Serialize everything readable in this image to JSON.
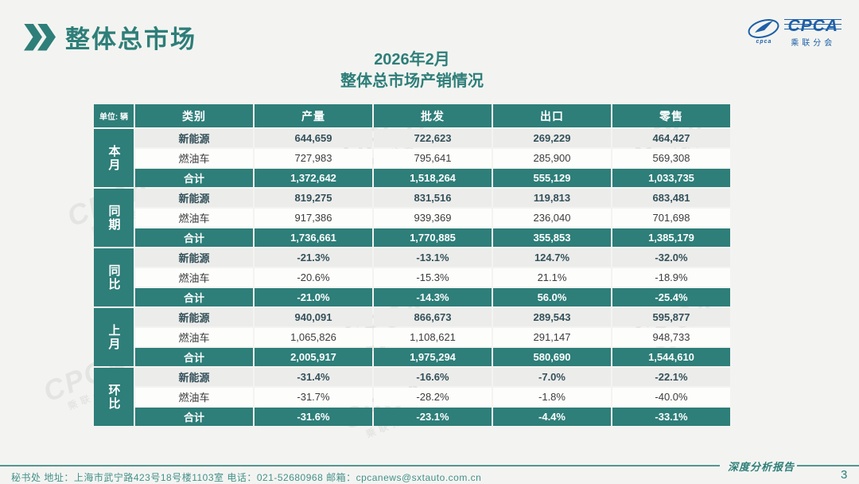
{
  "header": {
    "slide_title": "整体总市场"
  },
  "logo": {
    "text": "CPCA",
    "subtext": "乘联分会",
    "script": "cpca",
    "color": "#1e5fa8"
  },
  "title": {
    "line1": "2026年2月",
    "line2": "整体总市场产销情况"
  },
  "colors": {
    "teal": "#2e7e79",
    "alt_row_bg": "#ececea",
    "alt_row_text": "#33505a",
    "page_bg": "#f3f4f1"
  },
  "watermark": {
    "text": "CPCA",
    "subtext": "乘联分会"
  },
  "table": {
    "unit_label": "单位: 辆",
    "columns": [
      "类别",
      "产量",
      "批发",
      "出口",
      "零售"
    ],
    "groups": [
      {
        "label": "本月",
        "rows": [
          {
            "category": "新能源",
            "values": [
              "644,659",
              "722,623",
              "269,229",
              "464,427"
            ]
          },
          {
            "category": "燃油车",
            "values": [
              "727,983",
              "795,641",
              "285,900",
              "569,308"
            ]
          },
          {
            "category": "合计",
            "values": [
              "1,372,642",
              "1,518,264",
              "555,129",
              "1,033,735"
            ]
          }
        ]
      },
      {
        "label": "同期",
        "rows": [
          {
            "category": "新能源",
            "values": [
              "819,275",
              "831,516",
              "119,813",
              "683,481"
            ]
          },
          {
            "category": "燃油车",
            "values": [
              "917,386",
              "939,369",
              "236,040",
              "701,698"
            ]
          },
          {
            "category": "合计",
            "values": [
              "1,736,661",
              "1,770,885",
              "355,853",
              "1,385,179"
            ]
          }
        ]
      },
      {
        "label": "同比",
        "rows": [
          {
            "category": "新能源",
            "values": [
              "-21.3%",
              "-13.1%",
              "124.7%",
              "-32.0%"
            ]
          },
          {
            "category": "燃油车",
            "values": [
              "-20.6%",
              "-15.3%",
              "21.1%",
              "-18.9%"
            ]
          },
          {
            "category": "合计",
            "values": [
              "-21.0%",
              "-14.3%",
              "56.0%",
              "-25.4%"
            ]
          }
        ]
      },
      {
        "label": "上月",
        "rows": [
          {
            "category": "新能源",
            "values": [
              "940,091",
              "866,673",
              "289,543",
              "595,877"
            ]
          },
          {
            "category": "燃油车",
            "values": [
              "1,065,826",
              "1,108,621",
              "291,147",
              "948,733"
            ]
          },
          {
            "category": "合计",
            "values": [
              "2,005,917",
              "1,975,294",
              "580,690",
              "1,544,610"
            ]
          }
        ]
      },
      {
        "label": "环比",
        "rows": [
          {
            "category": "新能源",
            "values": [
              "-31.4%",
              "-16.6%",
              "-7.0%",
              "-22.1%"
            ]
          },
          {
            "category": "燃油车",
            "values": [
              "-31.7%",
              "-28.2%",
              "-1.8%",
              "-40.0%"
            ]
          },
          {
            "category": "合计",
            "values": [
              "-31.6%",
              "-23.1%",
              "-4.4%",
              "-33.1%"
            ]
          }
        ]
      }
    ]
  },
  "footer": {
    "address": "秘书处   地址：上海市武宁路423号18号楼1103室   电话：021-52680968   邮箱：cpcanews@sxtauto.com.cn",
    "report_label": "深度分析报告",
    "page_number": "3"
  }
}
